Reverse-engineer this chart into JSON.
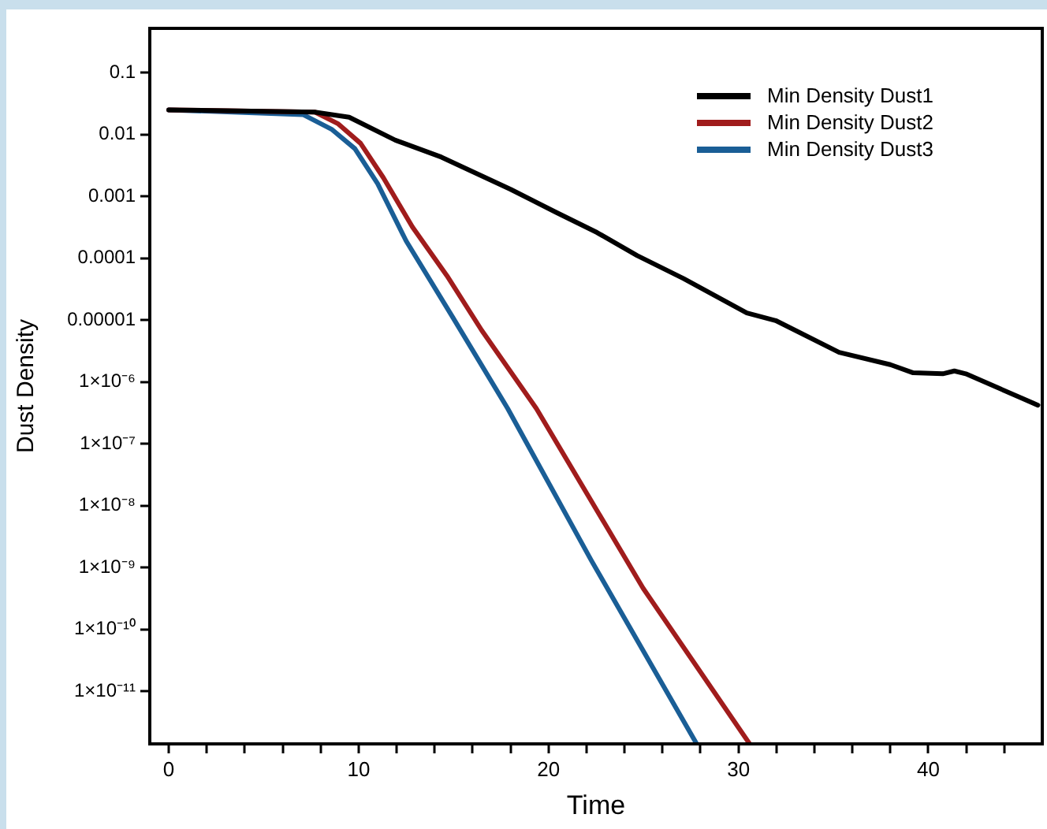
{
  "chart_data": {
    "type": "line",
    "xlabel": "Time",
    "ylabel": "Dust Density",
    "log": "y",
    "grid": false,
    "legend": "top right",
    "marker": "none",
    "line_style": "solid",
    "xlim": [
      -1,
      46
    ],
    "xticks": [
      0,
      {
        "value": 2,
        "label": null
      },
      {
        "value": 4,
        "label": null
      },
      {
        "value": 6,
        "label": null
      },
      {
        "value": 8,
        "label": null
      },
      10,
      {
        "value": 12,
        "label": null
      },
      {
        "value": 14,
        "label": null
      },
      {
        "value": 16,
        "label": null
      },
      {
        "value": 18,
        "label": null
      },
      20,
      {
        "value": 22,
        "label": null
      },
      {
        "value": 24,
        "label": null
      },
      {
        "value": 26,
        "label": null
      },
      {
        "value": 28,
        "label": null
      },
      30,
      {
        "value": 32,
        "label": null
      },
      {
        "value": 34,
        "label": null
      },
      {
        "value": 36,
        "label": null
      },
      {
        "value": 38,
        "label": null
      },
      40,
      {
        "value": 42,
        "label": null
      },
      {
        "value": 44,
        "label": null
      }
    ],
    "ylim": [
      1.4e-12,
      0.52
    ],
    "yticks": [
      {
        "value": 0.1,
        "label": "0.1"
      },
      {
        "value": 0.01,
        "label": "0.01"
      },
      {
        "value": 0.001,
        "label": "0.001"
      },
      {
        "value": 0.0001,
        "label": "0.0001"
      },
      {
        "value": 1e-05,
        "label": "0.00001"
      },
      {
        "value": 1e-06,
        "label": "1×10⁻⁶"
      },
      {
        "value": 1e-07,
        "label": "1×10⁻⁷"
      },
      {
        "value": 1e-08,
        "label": "1×10⁻⁸"
      },
      {
        "value": 1e-09,
        "label": "1×10⁻⁹"
      },
      {
        "value": 1e-10,
        "label": "1×10⁻¹⁰"
      },
      {
        "value": 1e-11,
        "label": "1×10⁻¹¹"
      }
    ],
    "series": [
      {
        "name": "Min Density Dust1",
        "color": "#000000",
        "x": [
          0,
          7.68,
          9.5,
          11.93,
          14.36,
          18.0,
          20.4,
          22.55,
          24.67,
          27.1,
          30.44,
          31.96,
          35.3,
          38.0,
          39.2,
          40.76,
          41.37,
          41.97,
          45.77
        ],
        "values": [
          0.025,
          0.023,
          0.019,
          0.0081,
          0.0043,
          0.0013,
          0.00055,
          0.00026,
          0.00011,
          4.7e-05,
          1.3e-05,
          9.8e-06,
          3e-06,
          1.9e-06,
          1.4e-06,
          1.35e-06,
          1.5e-06,
          1.35e-06,
          4.2e-07
        ]
      },
      {
        "name": "Min Density Dust2",
        "color": "#a01c1c",
        "x": [
          0,
          7.7,
          8.9,
          10.1,
          11.3,
          12.83,
          14.65,
          16.48,
          19.36,
          24.98,
          30.59
        ],
        "values": [
          0.025,
          0.023,
          0.015,
          0.0072,
          0.002,
          0.00032,
          5.2e-05,
          6.8e-06,
          3.7e-07,
          4.6e-10,
          1.4e-12
        ]
      },
      {
        "name": "Min Density Dust3",
        "color": "#1a5e96",
        "x": [
          0,
          7.07,
          8.6,
          9.8,
          11.0,
          12.5,
          14.96,
          17.85,
          22.25,
          27.8
        ],
        "values": [
          0.025,
          0.021,
          0.012,
          0.0059,
          0.0016,
          0.00019,
          1.1e-05,
          3.7e-07,
          1.3e-09,
          1.4e-12
        ]
      }
    ]
  }
}
